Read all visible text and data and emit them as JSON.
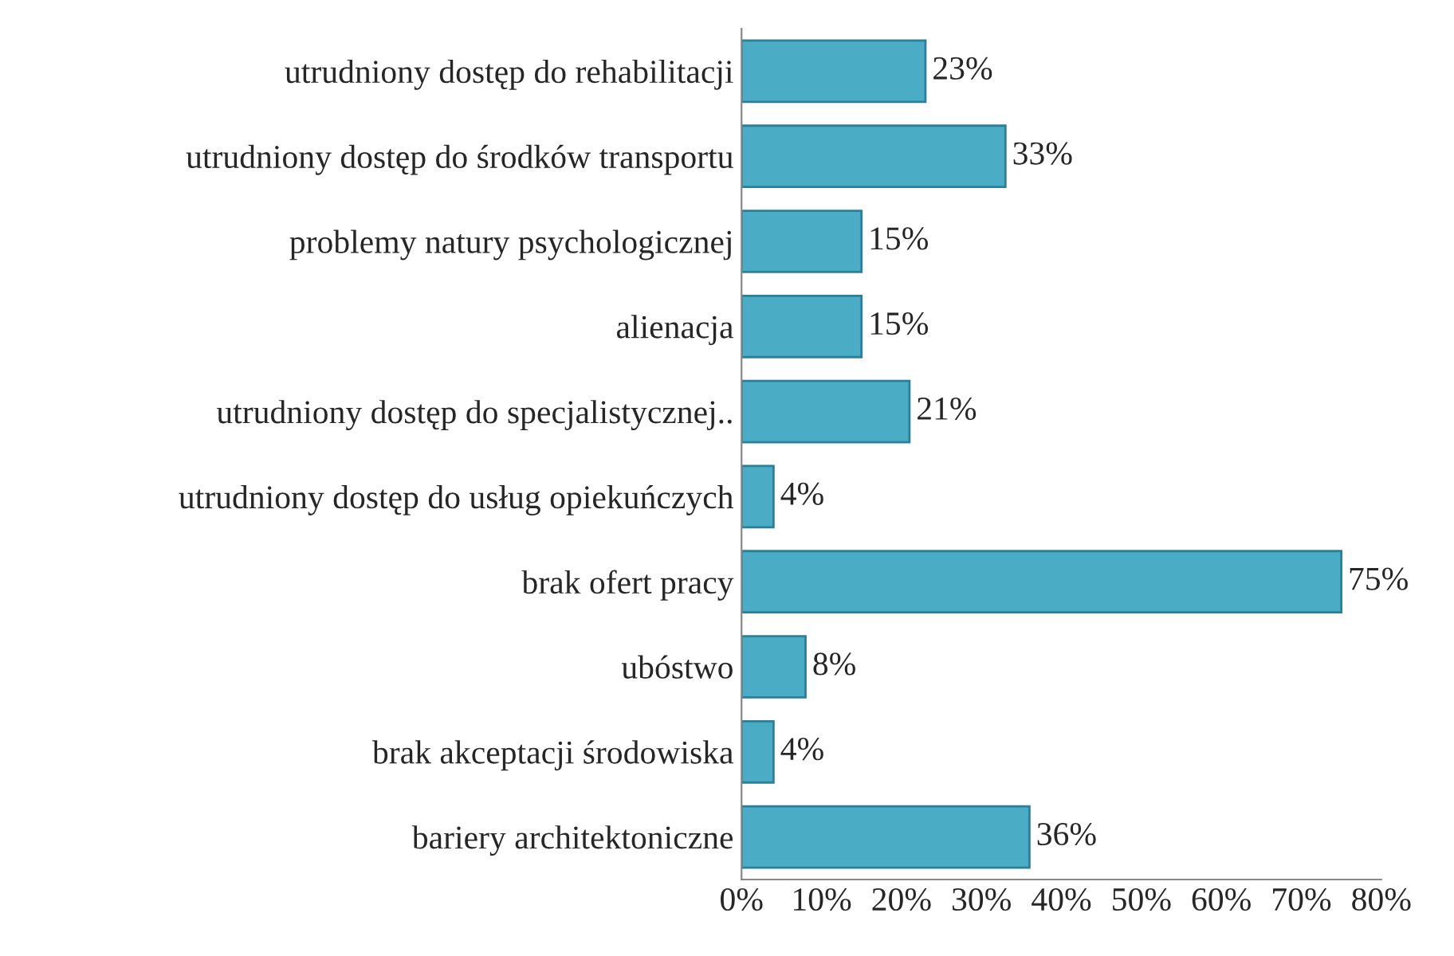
{
  "chart_data": {
    "type": "bar",
    "orientation": "horizontal",
    "categories": [
      "utrudniony dostęp do rehabilitacji",
      "utrudniony dostęp do środków transportu",
      "problemy natury psychologicznej",
      "alienacja",
      "utrudniony dostęp do specjalistycznej..",
      "utrudniony dostęp do usług opiekuńczych",
      "brak ofert pracy",
      "ubóstwo",
      "brak akceptacji środowiska",
      "bariery architektoniczne"
    ],
    "values": [
      23,
      33,
      15,
      15,
      21,
      4,
      75,
      8,
      4,
      36
    ],
    "value_labels": [
      "23%",
      "33%",
      "15%",
      "15%",
      "21%",
      "4%",
      "75%",
      "8%",
      "4%",
      "36%"
    ],
    "color": "#4bacc6",
    "xlim": [
      0,
      80
    ],
    "xticks": [
      {
        "value": 0,
        "label": "0%"
      },
      {
        "value": 10,
        "label": "10%"
      },
      {
        "value": 20,
        "label": "20%"
      },
      {
        "value": 30,
        "label": "30%"
      },
      {
        "value": 40,
        "label": "40%"
      },
      {
        "value": 50,
        "label": "50%"
      },
      {
        "value": 60,
        "label": "60%"
      },
      {
        "value": 70,
        "label": "70%"
      },
      {
        "value": 80,
        "label": "80%"
      }
    ],
    "grid": false
  }
}
